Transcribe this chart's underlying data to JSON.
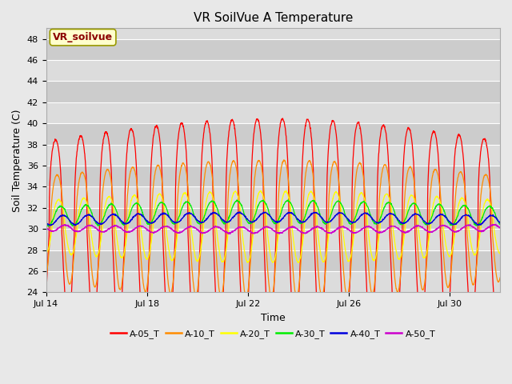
{
  "title": "VR SoilVue A Temperature",
  "xlabel": "Time",
  "ylabel": "Soil Temperature (C)",
  "ylim": [
    24,
    49
  ],
  "yticks": [
    24,
    26,
    28,
    30,
    32,
    34,
    36,
    38,
    40,
    42,
    44,
    46,
    48
  ],
  "bg_color": "#e8e8e8",
  "plot_bg_color": "#dcdcdc",
  "grid_color": "#ffffff",
  "band_colors": [
    "#dcdcdc",
    "#cccccc"
  ],
  "annotation_text": "VR_soilvue",
  "annotation_color": "#8b0000",
  "annotation_bg": "#ffffcc",
  "annotation_border": "#999900",
  "series": [
    {
      "label": "A-05_T",
      "color": "#ff0000",
      "base": 29.8,
      "amp": 8.5,
      "phase": 3.0
    },
    {
      "label": "A-10_T",
      "color": "#ff8c00",
      "base": 30.0,
      "amp": 5.0,
      "phase": 4.5
    },
    {
      "label": "A-20_T",
      "color": "#ffff00",
      "base": 30.2,
      "amp": 2.5,
      "phase": 6.0
    },
    {
      "label": "A-30_T",
      "color": "#00ee00",
      "base": 31.2,
      "amp": 0.9,
      "phase": 8.0
    },
    {
      "label": "A-40_T",
      "color": "#0000dd",
      "base": 30.8,
      "amp": 0.45,
      "phase": 10.0
    },
    {
      "label": "A-50_T",
      "color": "#cc00cc",
      "base": 30.0,
      "amp": 0.3,
      "phase": 12.0
    }
  ],
  "tick_positions": [
    0,
    4,
    8,
    12,
    16
  ],
  "tick_labels": [
    "Jul 14",
    "Jul 18",
    "Jul 22",
    "Jul 26",
    "Jul 30"
  ],
  "xlim": [
    0,
    18
  ],
  "n_points": 2160,
  "period_hours": 24,
  "total_hours": 432,
  "figsize": [
    6.4,
    4.8
  ],
  "dpi": 100
}
